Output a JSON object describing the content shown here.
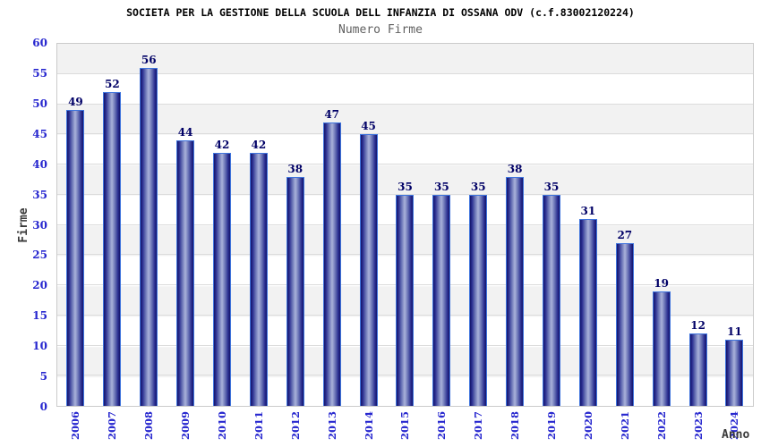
{
  "header": {
    "title": "SOCIETA PER LA GESTIONE DELLA SCUOLA DELL INFANZIA DI OSSANA ODV (c.f.83002120224)",
    "subtitle": "Numero Firme"
  },
  "chart_data": {
    "type": "bar",
    "title": "SOCIETA PER LA GESTIONE DELLA SCUOLA DELL INFANZIA DI OSSANA ODV (c.f.83002120224)",
    "subtitle": "Numero Firme",
    "xlabel": "Anno",
    "ylabel": "Firme",
    "categories": [
      "2006",
      "2007",
      "2008",
      "2009",
      "2010",
      "2011",
      "2012",
      "2013",
      "2014",
      "2015",
      "2016",
      "2017",
      "2018",
      "2019",
      "2020",
      "2021",
      "2022",
      "2023",
      "2024"
    ],
    "values": [
      49,
      52,
      56,
      44,
      42,
      42,
      38,
      47,
      45,
      35,
      35,
      35,
      38,
      35,
      31,
      27,
      19,
      12,
      11
    ],
    "ylim": [
      0,
      60
    ],
    "ytick_step": 5,
    "grid": true,
    "legend": false,
    "band_fill": "alternating horizontal bands, gray on 55-60, 45-50, 35-40, 25-30, 15-20, 5-10",
    "colors": {
      "band": "#f2f2f2",
      "gridline": "#dcdcdc",
      "bar_edge": "#14146a",
      "bar_mid2": "#2a2e90",
      "bar_mid3": "#6d77b8",
      "bar_center": "#aab2da",
      "bar_outline": "#3f74dd",
      "tick_label": "#2727cf",
      "value_label": "#000066"
    }
  }
}
